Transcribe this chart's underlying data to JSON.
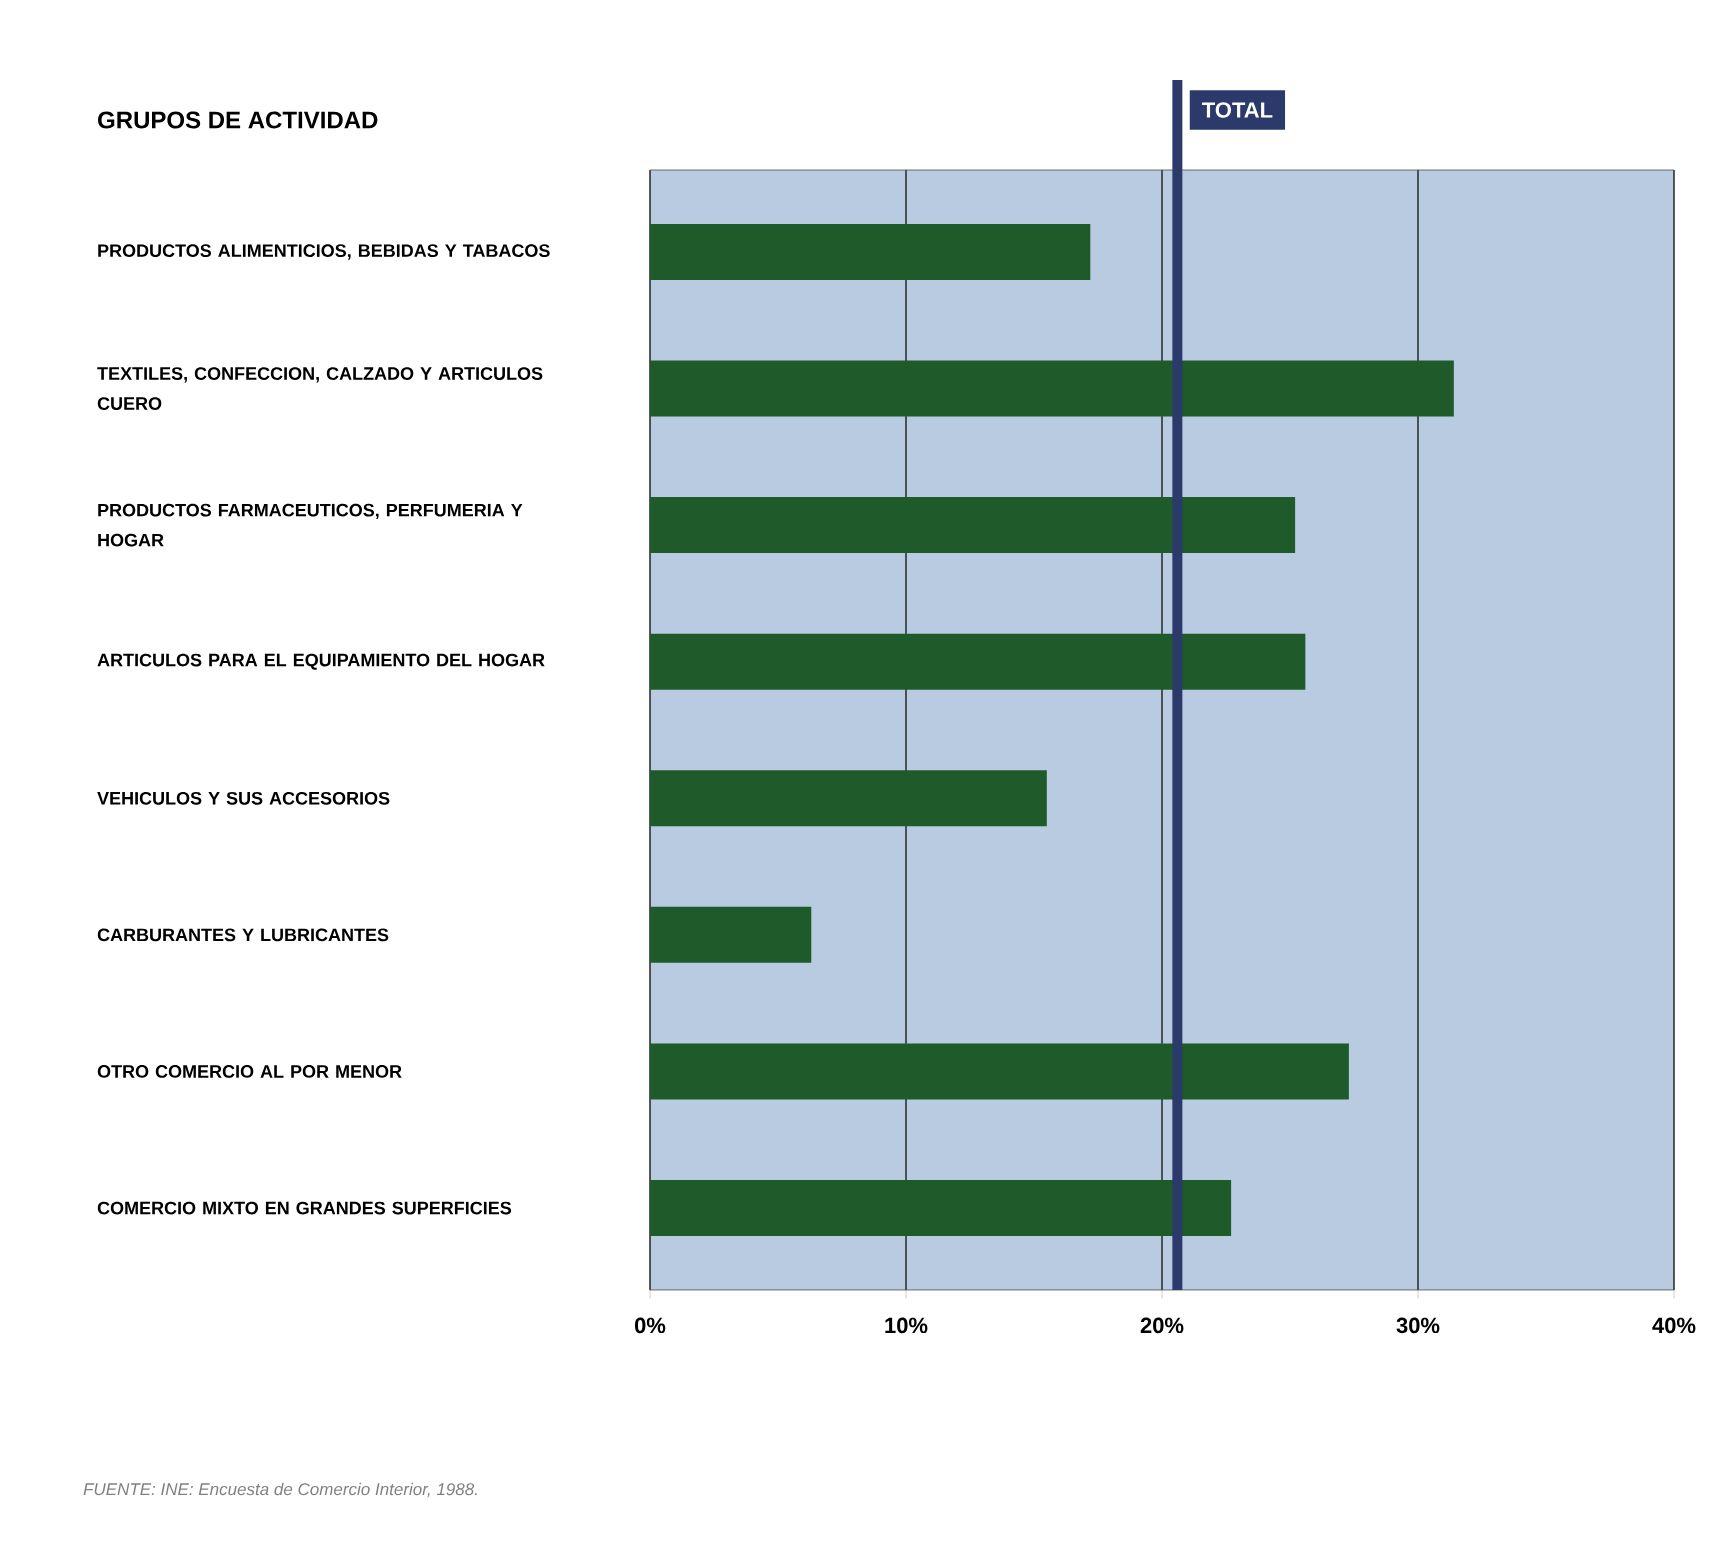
{
  "chart_data": {
    "type": "bar",
    "orientation": "horizontal",
    "title": "GRUPOS DE ACTIVIDAD",
    "categories": [
      "PRODUCTOS ALIMENTICIOS, BEBIDAS Y TABACOS",
      "TEXTILES, CONFECCION, CALZADO Y ARTICULOS CUERO",
      "PRODUCTOS FARMACEUTICOS, PERFUMERIA Y HOGAR",
      "ARTICULOS PARA EL EQUIPAMIENTO DEL HOGAR",
      "VEHICULOS Y SUS ACCESORIOS",
      "CARBURANTES Y LUBRICANTES",
      "OTRO COMERCIO AL POR MENOR",
      "COMERCIO MIXTO EN GRANDES SUPERFICIES"
    ],
    "values": [
      17.2,
      31.4,
      25.2,
      25.6,
      15.5,
      6.3,
      27.3,
      22.7
    ],
    "color": "#1e5a2a",
    "xlim": [
      0,
      40
    ],
    "xticks": [
      {
        "value": 0,
        "label": "0%"
      },
      {
        "value": 10,
        "label": "10%"
      },
      {
        "value": 20,
        "label": "20%"
      },
      {
        "value": 30,
        "label": "30%"
      },
      {
        "value": 40,
        "label": "40%"
      }
    ],
    "grid": "x",
    "ref_lines": [
      {
        "axis": "x",
        "value": 20.6,
        "label": "TOTAL",
        "color": "#2b3a6b"
      }
    ],
    "annotations": [
      "FUENTE: INE: Encuesta de Comercio Interior, 1988."
    ]
  }
}
